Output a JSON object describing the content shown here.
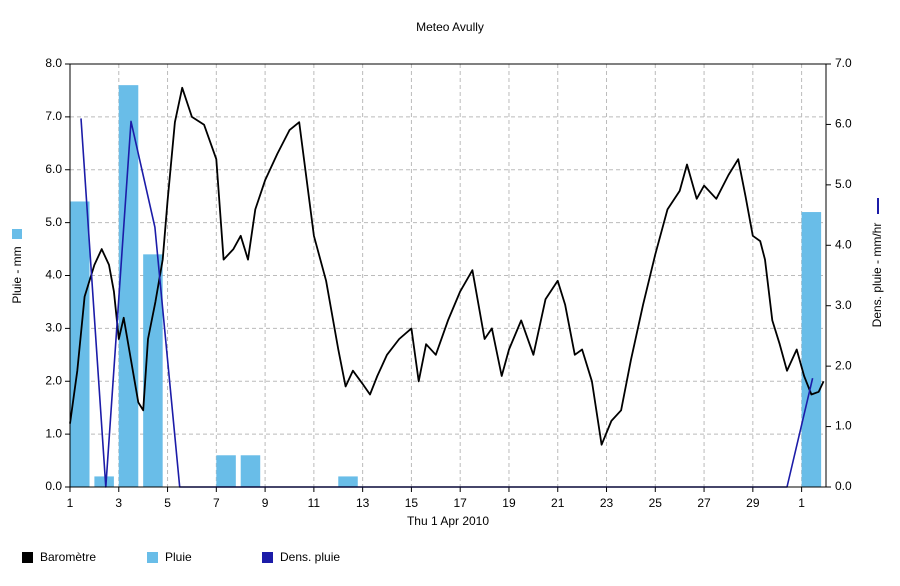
{
  "chart_data": {
    "type": "combo",
    "title": "Meteo  Avully",
    "x_label": "Thu 1 Apr 2010",
    "y_label": "Pluie - mm",
    "y2_label": "Dens. pluie - mm/hr",
    "xlim": [
      1,
      32
    ],
    "ylim": [
      0,
      8
    ],
    "y2lim": [
      0,
      7
    ],
    "grid": true,
    "xticks": [
      1,
      3,
      5,
      7,
      9,
      11,
      13,
      15,
      17,
      19,
      21,
      23,
      25,
      27,
      29,
      {
        "value": 31,
        "label": "1"
      }
    ],
    "yticks": [
      {
        "value": 0,
        "label": "0.0"
      },
      {
        "value": 1,
        "label": "1.0"
      },
      {
        "value": 2,
        "label": "2.0"
      },
      {
        "value": 3,
        "label": "3.0"
      },
      {
        "value": 4,
        "label": "4.0"
      },
      {
        "value": 5,
        "label": "5.0"
      },
      {
        "value": 6,
        "label": "6.0"
      },
      {
        "value": 7,
        "label": "7.0"
      },
      {
        "value": 8,
        "label": "8.0"
      }
    ],
    "y2ticks": [
      {
        "value": 0,
        "label": "0.0"
      },
      {
        "value": 1,
        "label": "1.0"
      },
      {
        "value": 2,
        "label": "2.0"
      },
      {
        "value": 3,
        "label": "3.0"
      },
      {
        "value": 4,
        "label": "4.0"
      },
      {
        "value": 5,
        "label": "5.0"
      },
      {
        "value": 6,
        "label": "6.0"
      },
      {
        "value": 7,
        "label": "7.0"
      }
    ],
    "series": [
      {
        "name": "Baromètre",
        "type": "line",
        "color": "#000000",
        "x": [
          1.0,
          1.3,
          1.6,
          2.0,
          2.3,
          2.6,
          2.8,
          3.0,
          3.2,
          3.5,
          3.8,
          4.0,
          4.2,
          4.5,
          4.8,
          5.0,
          5.3,
          5.6,
          6.0,
          6.5,
          7.0,
          7.3,
          7.7,
          8.0,
          8.3,
          8.6,
          9.0,
          9.5,
          10.0,
          10.4,
          11.0,
          11.5,
          12.0,
          12.3,
          12.6,
          13.0,
          13.3,
          13.6,
          14.0,
          14.5,
          15.0,
          15.3,
          15.6,
          16.0,
          16.5,
          17.0,
          17.5,
          18.0,
          18.3,
          18.7,
          19.0,
          19.5,
          20.0,
          20.5,
          21.0,
          21.3,
          21.7,
          22.0,
          22.4,
          22.8,
          23.2,
          23.6,
          24.0,
          24.5,
          25.0,
          25.5,
          26.0,
          26.3,
          26.7,
          27.0,
          27.5,
          28.0,
          28.4,
          28.7,
          29.0,
          29.3,
          29.5,
          29.8,
          30.1,
          30.4,
          30.8,
          31.1,
          31.4,
          31.7,
          31.9
        ],
        "values": [
          1.2,
          2.2,
          3.6,
          4.2,
          4.5,
          4.2,
          3.7,
          2.8,
          3.2,
          2.4,
          1.6,
          1.45,
          2.8,
          3.5,
          4.3,
          5.4,
          6.9,
          7.55,
          7.0,
          6.85,
          6.2,
          4.3,
          4.5,
          4.75,
          4.3,
          5.25,
          5.8,
          6.3,
          6.75,
          6.9,
          4.75,
          3.9,
          2.6,
          1.9,
          2.2,
          1.95,
          1.75,
          2.1,
          2.5,
          2.8,
          3.0,
          2.0,
          2.7,
          2.5,
          3.15,
          3.7,
          4.1,
          2.8,
          3.0,
          2.1,
          2.6,
          3.15,
          2.5,
          3.55,
          3.9,
          3.45,
          2.5,
          2.6,
          2.0,
          0.8,
          1.25,
          1.45,
          2.4,
          3.45,
          4.4,
          5.25,
          5.6,
          6.1,
          5.45,
          5.7,
          5.45,
          5.9,
          6.2,
          5.5,
          4.75,
          4.65,
          4.3,
          3.15,
          2.7,
          2.2,
          2.6,
          2.1,
          1.75,
          1.8,
          2.0
        ]
      },
      {
        "name": "Pluie",
        "type": "bar",
        "color": "#69bde8",
        "x": [
          1,
          2,
          3,
          4,
          7,
          8,
          12,
          31
        ],
        "values": [
          5.4,
          0.2,
          7.6,
          4.4,
          0.6,
          0.6,
          0.2,
          5.2
        ]
      },
      {
        "name": "Dens. pluie",
        "type": "line",
        "axis": "y2",
        "color": "#1c1ca8",
        "x": [
          1.45,
          2.47,
          3.5,
          4.48,
          5.5,
          30.4,
          31.45
        ],
        "values": [
          6.1,
          0,
          6.05,
          4.3,
          0,
          0,
          1.8
        ]
      }
    ]
  }
}
